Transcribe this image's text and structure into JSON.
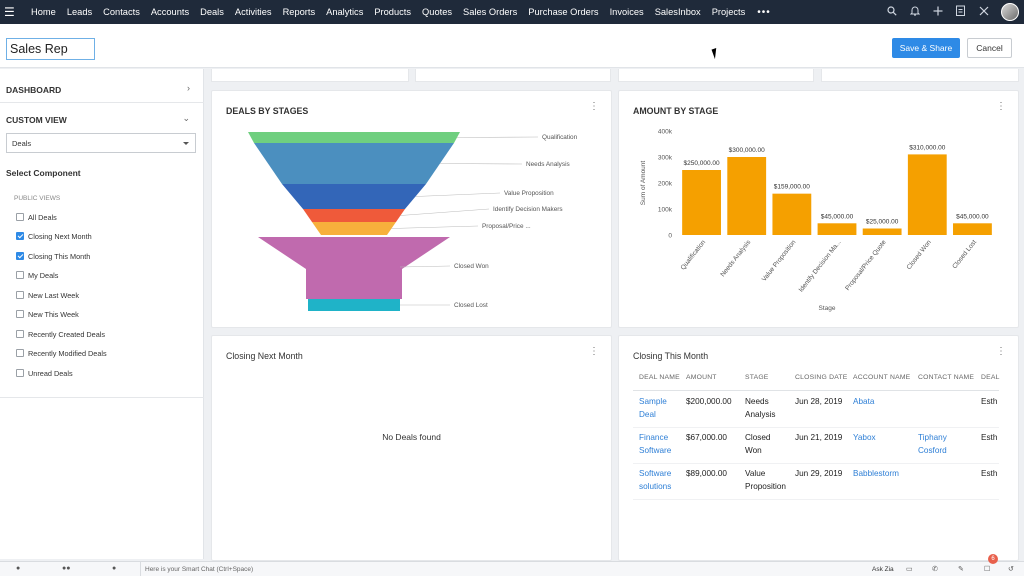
{
  "nav": {
    "items": [
      "Home",
      "Leads",
      "Contacts",
      "Accounts",
      "Deals",
      "Activities",
      "Reports",
      "Analytics",
      "Products",
      "Quotes",
      "Sales Orders",
      "Purchase Orders",
      "Invoices",
      "SalesInbox",
      "Projects"
    ],
    "more": "•••",
    "icons": [
      "search-icon",
      "bell-icon",
      "plus-icon",
      "clipboard-icon",
      "tools-icon",
      "avatar"
    ]
  },
  "header": {
    "dashboard_name": "Sales Rep",
    "save_share_label": "Save & Share",
    "cancel_label": "Cancel"
  },
  "sidebar": {
    "dashboard_label": "DASHBOARD",
    "custom_view_label": "CUSTOM VIEW",
    "module_select": "Deals",
    "select_component_label": "Select Component",
    "public_views_label": "PUBLIC VIEWS",
    "views": [
      {
        "label": "All Deals",
        "checked": false
      },
      {
        "label": "Closing Next Month",
        "checked": true
      },
      {
        "label": "Closing This Month",
        "checked": true
      },
      {
        "label": "My Deals",
        "checked": false
      },
      {
        "label": "New Last Week",
        "checked": false
      },
      {
        "label": "New This Week",
        "checked": false
      },
      {
        "label": "Recently Created Deals",
        "checked": false
      },
      {
        "label": "Recently Modified Deals",
        "checked": false
      },
      {
        "label": "Unread Deals",
        "checked": false
      }
    ]
  },
  "cards": {
    "funnel_title": "DEALS BY STAGES",
    "bar_title": "AMOUNT BY STAGE",
    "next_month_title": "Closing Next Month",
    "next_month_empty": "No Deals found",
    "this_month_title": "Closing This Month"
  },
  "chart_data": [
    {
      "type": "funnel",
      "title": "DEALS BY STAGES",
      "stages": [
        {
          "label": "Qualification",
          "color": "#6fcf7f"
        },
        {
          "label": "Needs Analysis",
          "color": "#4b8fbf"
        },
        {
          "label": "Value Proposition",
          "color": "#3366b8"
        },
        {
          "label": "Identify Decision Makers",
          "color": "#ef5a3a"
        },
        {
          "label": "Proposal/Price ...",
          "color": "#f7b03c"
        },
        {
          "label": "Closed Won",
          "color": "#c06aae"
        },
        {
          "label": "Closed Lost",
          "color": "#1fb3c8"
        }
      ]
    },
    {
      "type": "bar",
      "title": "AMOUNT BY STAGE",
      "xlabel": "Stage",
      "ylabel": "Sum of Amount",
      "ylim": [
        0,
        400000
      ],
      "yticks": [
        0,
        100000,
        200000,
        300000,
        400000
      ],
      "ytick_labels": [
        "0",
        "100k",
        "200k",
        "300k",
        "400k"
      ],
      "color": "#f5a000",
      "categories": [
        "Qualification",
        "Needs Analysis",
        "Value Proposition",
        "Identify Decision Ma...",
        "Proposal/Price Quote",
        "Closed Won",
        "Closed Lost"
      ],
      "values": [
        250000,
        300000,
        159000,
        45000,
        25000,
        310000,
        45000
      ],
      "value_labels": [
        "$250,000.00",
        "$300,000.00",
        "$159,000.00",
        "$45,000.00",
        "$25,000.00",
        "$310,000.00",
        "$45,000.00"
      ]
    }
  ],
  "table": {
    "headers": [
      "DEAL NAME",
      "AMOUNT",
      "STAGE",
      "CLOSING DATE",
      "ACCOUNT NAME",
      "CONTACT NAME",
      "DEAL"
    ],
    "rows": [
      {
        "deal": [
          "Sample",
          "Deal"
        ],
        "amount": "$200,000.00",
        "stage": [
          "Needs",
          "Analysis"
        ],
        "date": "Jun 28, 2019",
        "account": "Abata",
        "contact": [
          "",
          ""
        ],
        "owner": "Esth"
      },
      {
        "deal": [
          "Finance",
          "Software"
        ],
        "amount": "$67,000.00",
        "stage": [
          "Closed",
          "Won"
        ],
        "date": "Jun 21, 2019",
        "account": "Yabox",
        "contact": [
          "Tiphany",
          "Cosford"
        ],
        "owner": "Esth"
      },
      {
        "deal": [
          "Software",
          "solutions"
        ],
        "amount": "$89,000.00",
        "stage": [
          "Value",
          "Proposition"
        ],
        "date": "Jun 29, 2019",
        "account": "Babblestorm",
        "contact": [
          "",
          ""
        ],
        "owner": "Esth"
      }
    ]
  },
  "bottom": {
    "smart_chat_placeholder": "Here is your Smart Chat (Ctrl+Space)",
    "ask_zia": "Ask Zia",
    "notification_count": "6"
  }
}
